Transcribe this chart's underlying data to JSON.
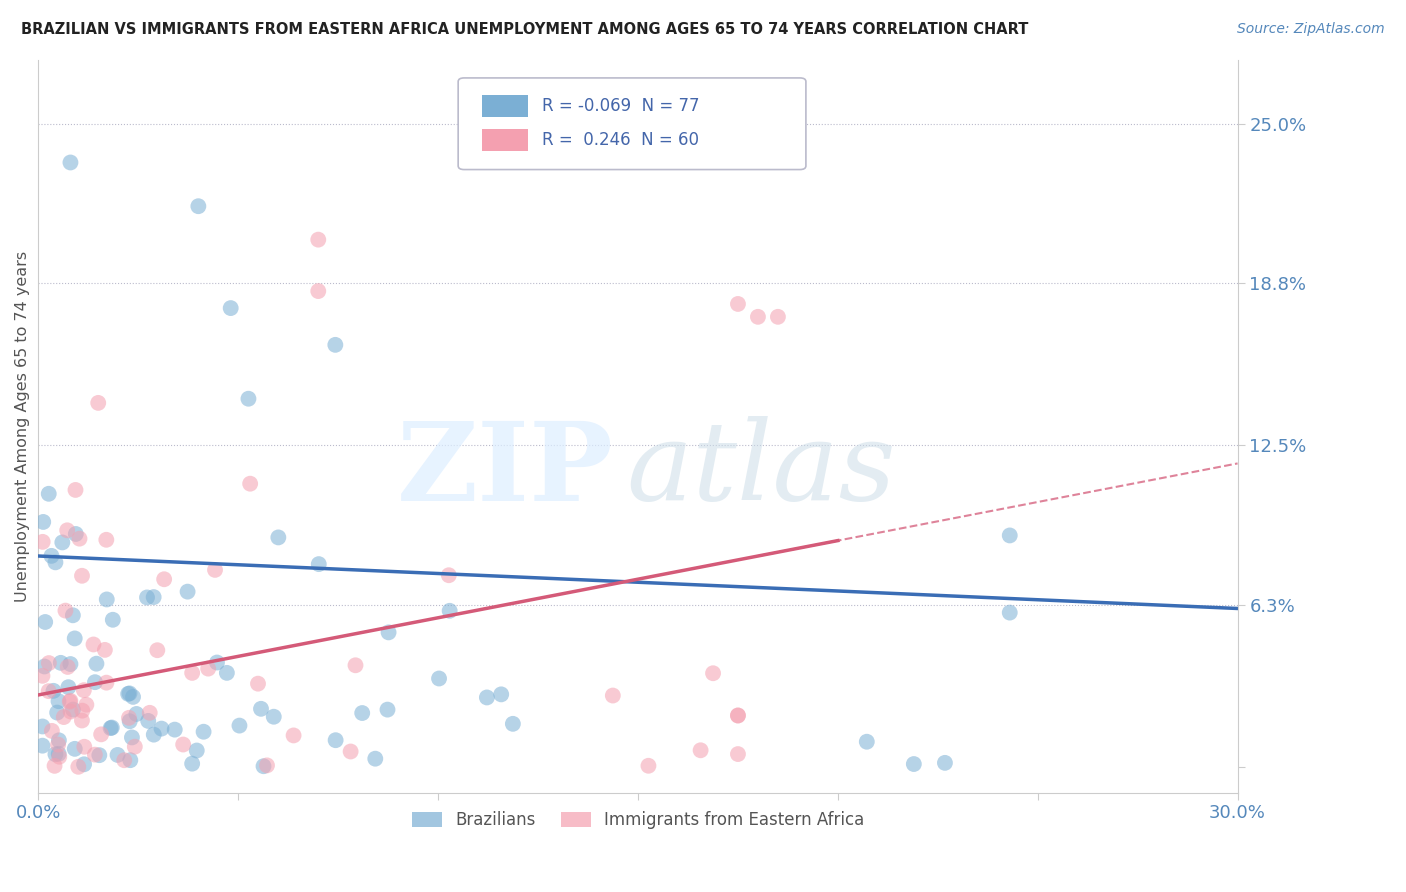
{
  "title": "BRAZILIAN VS IMMIGRANTS FROM EASTERN AFRICA UNEMPLOYMENT AMONG AGES 65 TO 74 YEARS CORRELATION CHART",
  "source": "Source: ZipAtlas.com",
  "ylabel": "Unemployment Among Ages 65 to 74 years",
  "xmin": 0.0,
  "xmax": 0.3,
  "ymin": -0.01,
  "ymax": 0.275,
  "yticks": [
    0.0,
    0.063,
    0.125,
    0.188,
    0.25
  ],
  "ytick_labels": [
    "",
    "6.3%",
    "12.5%",
    "18.8%",
    "25.0%"
  ],
  "legend1_label": "R = -0.069  N = 77",
  "legend2_label": "R =  0.246  N = 60",
  "blue_color": "#7bafd4",
  "pink_color": "#f4a0b0",
  "blue_line_color": "#3a6db5",
  "pink_line_color": "#d45a78",
  "n_blue": 77,
  "n_pink": 60,
  "blue_intercept": 0.082,
  "blue_slope": -0.068,
  "pink_intercept": 0.028,
  "pink_slope": 0.3
}
